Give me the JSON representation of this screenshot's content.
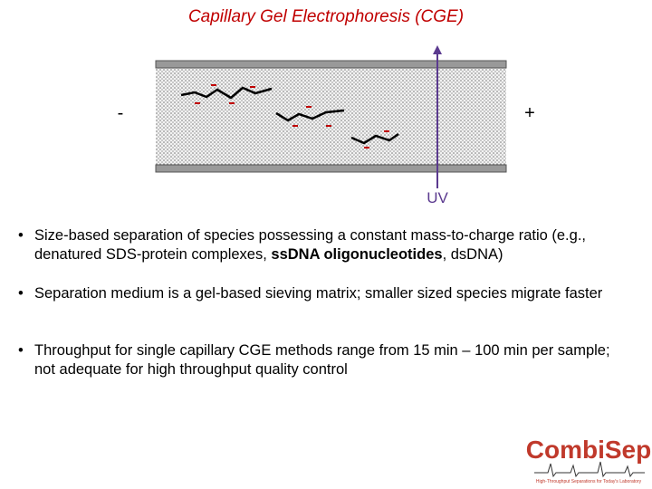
{
  "header": {
    "title": "Capillary Gel Electrophoresis (CGE)"
  },
  "diagram": {
    "negative_label": "-",
    "positive_label": "+",
    "detector_label": "UV"
  },
  "bullets": [
    {
      "runs": [
        "Size-based separation of species possessing a constant mass-to-charge ratio (e.g., denatured SDS-protein complexes, ",
        "ssDNA oligonucleotides",
        ", dsDNA)"
      ]
    },
    {
      "runs": [
        "Separation medium is a gel-based sieving matrix; smaller sized species migrate faster"
      ]
    },
    {
      "runs": [
        "Throughput for single capillary CGE methods range from 15 min – 100 min per sample; not adequate for high throughput quality control"
      ]
    }
  ],
  "logo": {
    "name": "CombiSep",
    "tagline": "High-Throughput Separations for Today's Laboratory"
  }
}
